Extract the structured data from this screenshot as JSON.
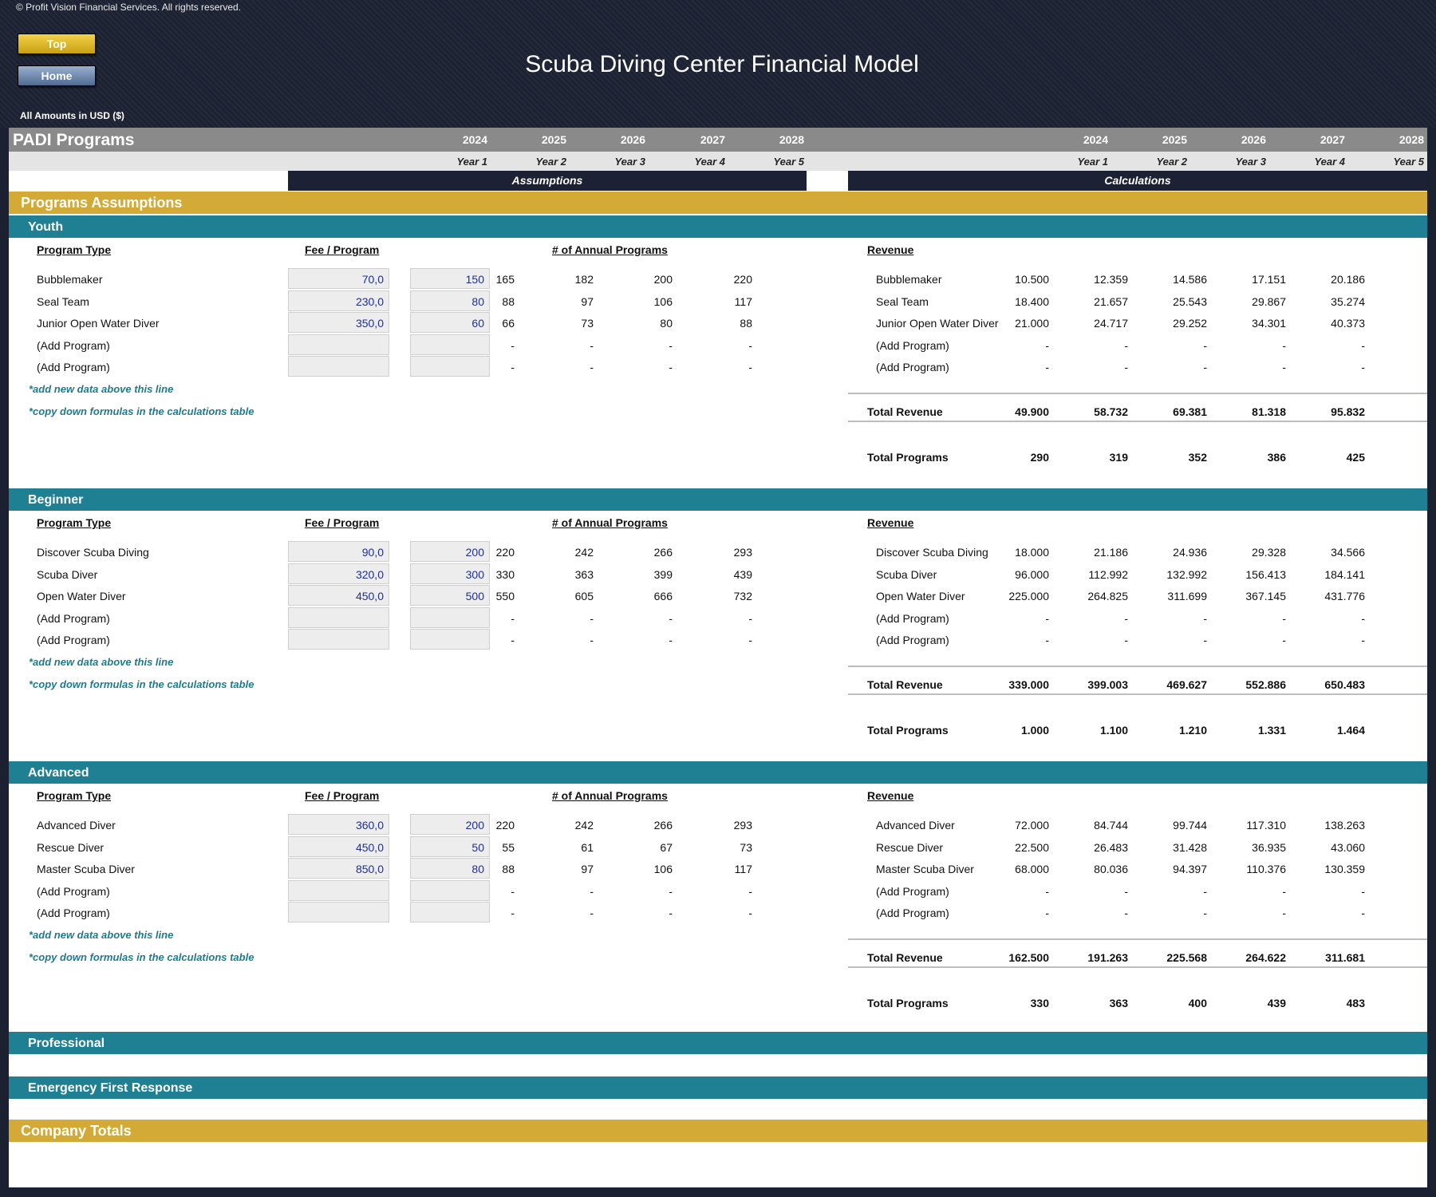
{
  "header": {
    "copyright": "© Profit Vision Financial Services. All rights reserved.",
    "top_button": "Top",
    "home_button": "Home",
    "title": "Scuba Diving Center Financial Model",
    "amounts_label": "All Amounts in  USD ($)"
  },
  "sheet": {
    "title": "PADI Programs",
    "years": [
      "2024",
      "2025",
      "2026",
      "2027",
      "2028"
    ],
    "year_labels": [
      "Year 1",
      "Year 2",
      "Year 3",
      "Year 4",
      "Year 5"
    ],
    "assumptions_label": "Assumptions",
    "calculations_label": "Calculations",
    "programs_assumptions": "Programs Assumptions",
    "col_program_type": "Program Type",
    "col_fee": "Fee / Program",
    "col_annual": "# of Annual Programs",
    "col_revenue": "Revenue",
    "note_add": "*add new data above this line",
    "note_copy": "*copy down formulas in the calculations table",
    "total_revenue_label": "Total Revenue",
    "total_programs_label": "Total Programs",
    "professional": "Professional",
    "emergency": "Emergency First Response",
    "company_totals": "Company Totals"
  },
  "sections": [
    {
      "name": "Youth",
      "rows": [
        {
          "type": "Bubblemaker",
          "fee": "70,0",
          "base": "150",
          "programs": [
            "165",
            "182",
            "200",
            "220"
          ],
          "revenue": [
            "10.500",
            "12.359",
            "14.586",
            "17.151",
            "20.186"
          ]
        },
        {
          "type": "Seal Team",
          "fee": "230,0",
          "base": "80",
          "programs": [
            "88",
            "97",
            "106",
            "117"
          ],
          "revenue": [
            "18.400",
            "21.657",
            "25.543",
            "29.867",
            "35.274"
          ]
        },
        {
          "type": "Junior Open Water Diver",
          "fee": "350,0",
          "base": "60",
          "programs": [
            "66",
            "73",
            "80",
            "88"
          ],
          "revenue": [
            "21.000",
            "24.717",
            "29.252",
            "34.301",
            "40.373"
          ]
        },
        {
          "type": "(Add Program)",
          "fee": "",
          "base": "",
          "programs": [
            "-",
            "-",
            "-",
            "-"
          ],
          "revenue": [
            "-",
            "-",
            "-",
            "-",
            "-"
          ]
        },
        {
          "type": "(Add Program)",
          "fee": "",
          "base": "",
          "programs": [
            "-",
            "-",
            "-",
            "-"
          ],
          "revenue": [
            "-",
            "-",
            "-",
            "-",
            "-"
          ]
        }
      ],
      "total_revenue": [
        "49.900",
        "58.732",
        "69.381",
        "81.318",
        "95.832"
      ],
      "total_programs": [
        "290",
        "319",
        "352",
        "386",
        "425"
      ]
    },
    {
      "name": "Beginner",
      "rows": [
        {
          "type": "Discover Scuba Diving",
          "fee": "90,0",
          "base": "200",
          "programs": [
            "220",
            "242",
            "266",
            "293"
          ],
          "revenue": [
            "18.000",
            "21.186",
            "24.936",
            "29.328",
            "34.566"
          ]
        },
        {
          "type": "Scuba Diver",
          "fee": "320,0",
          "base": "300",
          "programs": [
            "330",
            "363",
            "399",
            "439"
          ],
          "revenue": [
            "96.000",
            "112.992",
            "132.992",
            "156.413",
            "184.141"
          ]
        },
        {
          "type": "Open Water Diver",
          "fee": "450,0",
          "base": "500",
          "programs": [
            "550",
            "605",
            "666",
            "732"
          ],
          "revenue": [
            "225.000",
            "264.825",
            "311.699",
            "367.145",
            "431.776"
          ]
        },
        {
          "type": "(Add Program)",
          "fee": "",
          "base": "",
          "programs": [
            "-",
            "-",
            "-",
            "-"
          ],
          "revenue": [
            "-",
            "-",
            "-",
            "-",
            "-"
          ]
        },
        {
          "type": "(Add Program)",
          "fee": "",
          "base": "",
          "programs": [
            "-",
            "-",
            "-",
            "-"
          ],
          "revenue": [
            "-",
            "-",
            "-",
            "-",
            "-"
          ]
        }
      ],
      "total_revenue": [
        "339.000",
        "399.003",
        "469.627",
        "552.886",
        "650.483"
      ],
      "total_programs": [
        "1.000",
        "1.100",
        "1.210",
        "1.331",
        "1.464"
      ]
    },
    {
      "name": "Advanced",
      "rows": [
        {
          "type": "Advanced Diver",
          "fee": "360,0",
          "base": "200",
          "programs": [
            "220",
            "242",
            "266",
            "293"
          ],
          "revenue": [
            "72.000",
            "84.744",
            "99.744",
            "117.310",
            "138.263"
          ]
        },
        {
          "type": "Rescue Diver",
          "fee": "450,0",
          "base": "50",
          "programs": [
            "55",
            "61",
            "67",
            "73"
          ],
          "revenue": [
            "22.500",
            "26.483",
            "31.428",
            "36.935",
            "43.060"
          ]
        },
        {
          "type": "Master Scuba Diver",
          "fee": "850,0",
          "base": "80",
          "programs": [
            "88",
            "97",
            "106",
            "117"
          ],
          "revenue": [
            "68.000",
            "80.036",
            "94.397",
            "110.376",
            "130.359"
          ]
        },
        {
          "type": "(Add Program)",
          "fee": "",
          "base": "",
          "programs": [
            "-",
            "-",
            "-",
            "-"
          ],
          "revenue": [
            "-",
            "-",
            "-",
            "-",
            "-"
          ]
        },
        {
          "type": "(Add Program)",
          "fee": "",
          "base": "",
          "programs": [
            "-",
            "-",
            "-",
            "-"
          ],
          "revenue": [
            "-",
            "-",
            "-",
            "-",
            "-"
          ]
        }
      ],
      "total_revenue": [
        "162.500",
        "191.263",
        "225.568",
        "264.622",
        "311.681"
      ],
      "total_programs": [
        "330",
        "363",
        "400",
        "439",
        "483"
      ]
    }
  ]
}
